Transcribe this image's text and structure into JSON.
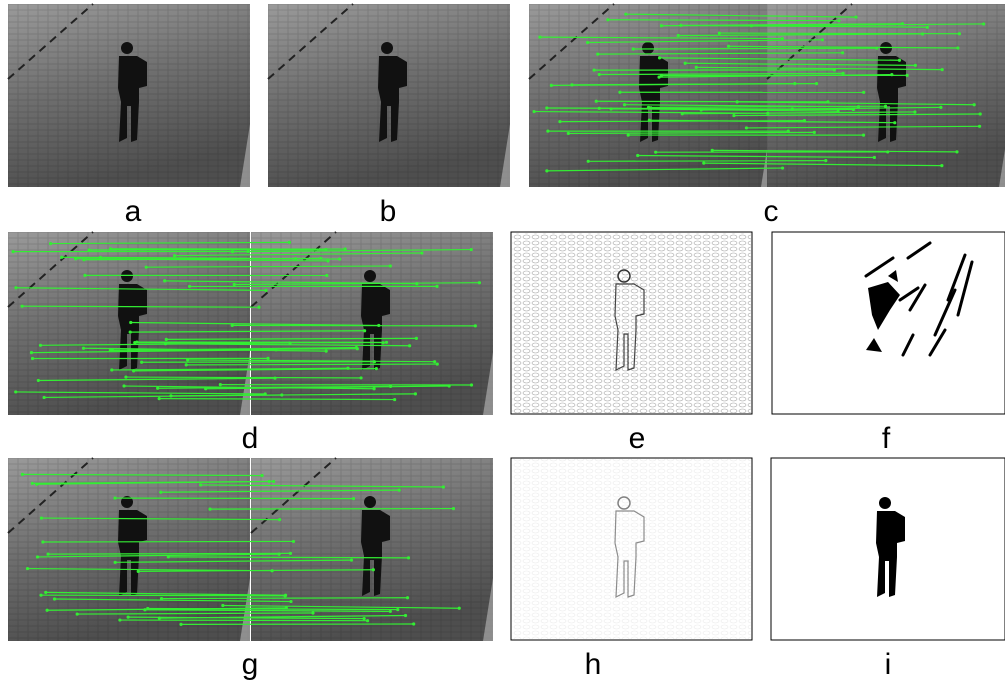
{
  "panels": [
    {
      "label": "a"
    },
    {
      "label": "b"
    },
    {
      "label": "c"
    },
    {
      "label": "d"
    },
    {
      "label": "e"
    },
    {
      "label": "f"
    },
    {
      "label": "g"
    },
    {
      "label": "h"
    },
    {
      "label": "i"
    }
  ]
}
